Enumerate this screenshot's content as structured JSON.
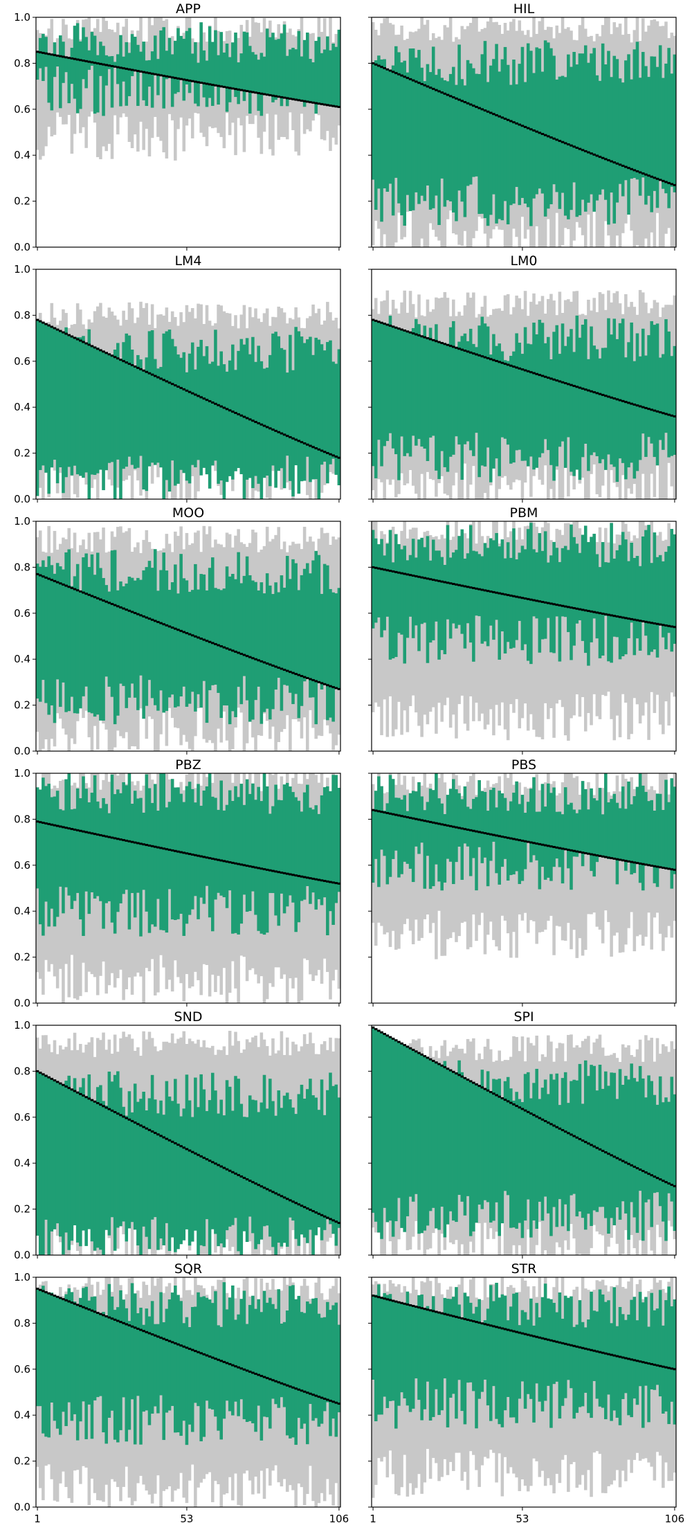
{
  "chart_data": {
    "type": "range-bar",
    "n_items": 106,
    "x_ticks": [
      1,
      53,
      106
    ],
    "y_ticks": [
      0.0,
      0.2,
      0.4,
      0.6,
      0.8,
      1.0
    ],
    "ylim": [
      0,
      1
    ],
    "colors": {
      "outer_range": "#c8c8c8",
      "inner_range": "#1f9e74",
      "median": "#000000"
    },
    "panels": [
      {
        "title": "APP",
        "median_start": 0.85,
        "median_end": 0.61,
        "inner_low": 0.68,
        "inner_high": 0.9,
        "outer_low": 0.48,
        "outer_high": 0.95
      },
      {
        "title": "HIL",
        "median_start": 0.8,
        "median_end": 0.27,
        "inner_low": 0.2,
        "inner_high": 0.8,
        "outer_low": 0.05,
        "outer_high": 0.95
      },
      {
        "title": "LM4",
        "median_start": 0.78,
        "median_end": 0.18,
        "inner_low": 0.08,
        "inner_high": 0.65,
        "outer_low": 0.04,
        "outer_high": 0.8
      },
      {
        "title": "LM0",
        "median_start": 0.78,
        "median_end": 0.36,
        "inner_low": 0.18,
        "inner_high": 0.7,
        "outer_low": 0.05,
        "outer_high": 0.85
      },
      {
        "title": "MOO",
        "median_start": 0.77,
        "median_end": 0.27,
        "inner_low": 0.22,
        "inner_high": 0.78,
        "outer_low": 0.08,
        "outer_high": 0.92
      },
      {
        "title": "PBM",
        "median_start": 0.8,
        "median_end": 0.54,
        "inner_low": 0.48,
        "inner_high": 0.9,
        "outer_low": 0.15,
        "outer_high": 0.96
      },
      {
        "title": "PBZ",
        "median_start": 0.79,
        "median_end": 0.52,
        "inner_low": 0.4,
        "inner_high": 0.92,
        "outer_low": 0.1,
        "outer_high": 0.98
      },
      {
        "title": "PBS",
        "median_start": 0.84,
        "median_end": 0.58,
        "inner_low": 0.6,
        "inner_high": 0.92,
        "outer_low": 0.3,
        "outer_high": 0.96
      },
      {
        "title": "SND",
        "median_start": 0.8,
        "median_end": 0.14,
        "inner_low": 0.06,
        "inner_high": 0.7,
        "outer_low": 0.02,
        "outer_high": 0.92
      },
      {
        "title": "SPI",
        "median_start": 0.99,
        "median_end": 0.3,
        "inner_low": 0.17,
        "inner_high": 0.75,
        "outer_low": 0.04,
        "outer_high": 0.9
      },
      {
        "title": "SQR",
        "median_start": 0.95,
        "median_end": 0.45,
        "inner_low": 0.38,
        "inner_high": 0.88,
        "outer_low": 0.08,
        "outer_high": 0.96
      },
      {
        "title": "STR",
        "median_start": 0.92,
        "median_end": 0.6,
        "inner_low": 0.45,
        "inner_high": 0.88,
        "outer_low": 0.15,
        "outer_high": 0.96
      }
    ]
  }
}
